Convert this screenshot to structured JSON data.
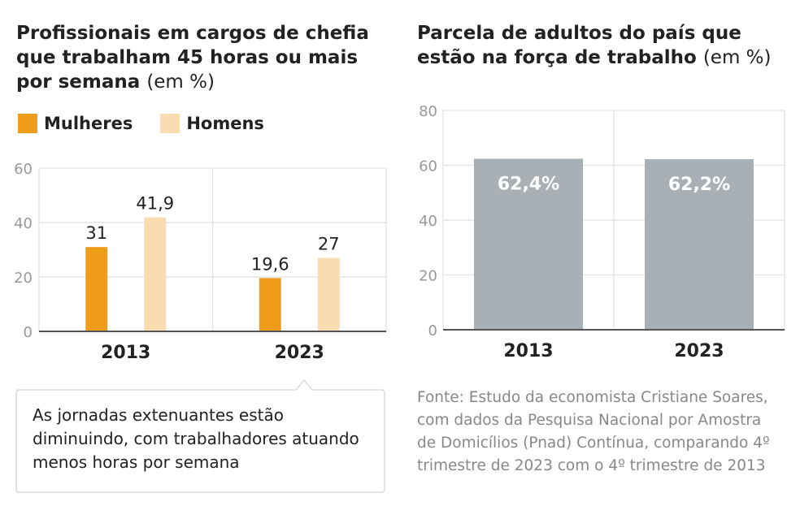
{
  "left": {
    "title": "Profissionais em cargos de chefia que trabalham 45 horas ou mais por semana",
    "unit": "(em %)",
    "legend": [
      {
        "label": "Mulheres",
        "color": "#F09C1B"
      },
      {
        "label": "Homens",
        "color": "#F9DDB0"
      }
    ]
  },
  "right": {
    "title": "Parcela de adultos do país que estão na força de trabalho",
    "unit": "(em %)"
  },
  "note": "As jornadas extenuantes estão diminuindo, com trabalhadores atuando menos horas por semana",
  "source": "Fonte: Estudo da economista Cristiane Soares, com dados da Pesquisa Nacional por Amostra de Domicílios (Pnad) Contínua, comparando 4º trimestre de 2023 com o 4º trimestre de 2013",
  "chart_data": [
    {
      "type": "bar",
      "title": "Profissionais em cargos de chefia que trabalham 45 horas ou mais por semana (em %)",
      "categories": [
        "2013",
        "2023"
      ],
      "series": [
        {
          "name": "Mulheres",
          "values": [
            31,
            19.6
          ],
          "labels": [
            "31",
            "19,6"
          ],
          "color": "#F09C1B"
        },
        {
          "name": "Homens",
          "values": [
            41.9,
            27
          ],
          "labels": [
            "41,9",
            "27"
          ],
          "color": "#F9DDB0"
        }
      ],
      "yticks": [
        0,
        20,
        40,
        60
      ],
      "ylim": [
        0,
        60
      ],
      "grid": true,
      "legend": "top-left"
    },
    {
      "type": "bar",
      "title": "Parcela de adultos do país que estão na força de trabalho (em %)",
      "categories": [
        "2013",
        "2023"
      ],
      "series": [
        {
          "name": "Força de trabalho",
          "values": [
            62.4,
            62.2
          ],
          "labels": [
            "62,4%",
            "62,2%"
          ],
          "color": "#A9B0B5"
        }
      ],
      "yticks": [
        0,
        20,
        40,
        60,
        80
      ],
      "ylim": [
        0,
        80
      ],
      "grid": true
    }
  ]
}
